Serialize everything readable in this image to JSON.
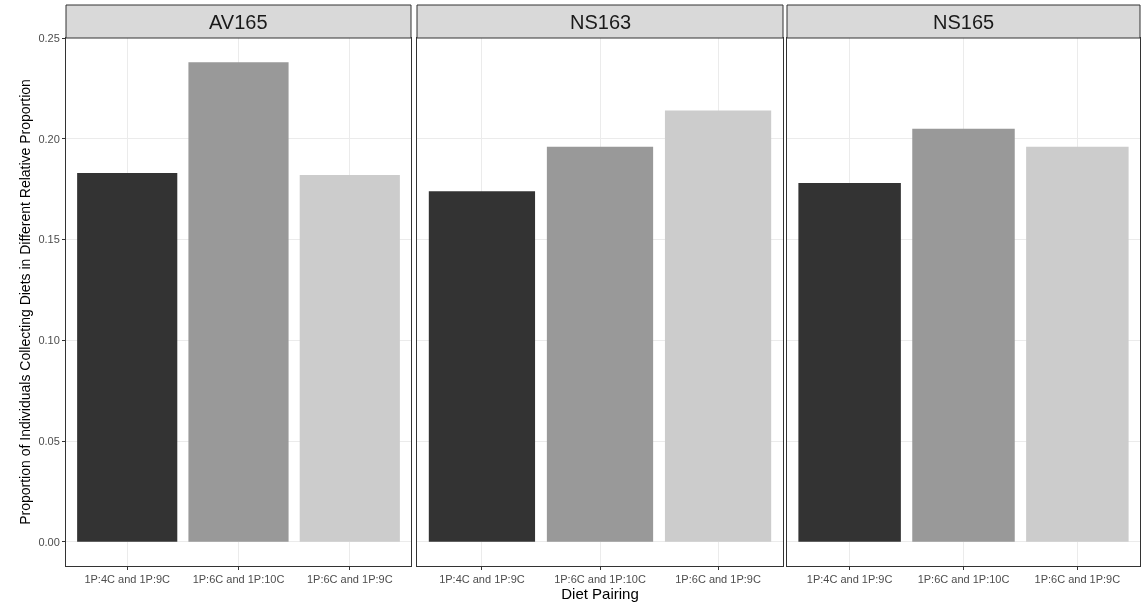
{
  "chart_data": [
    {
      "type": "bar",
      "title": "AV165",
      "ylabel": "Proportion of Individuals Collecting Diets in Different Relative Proportion",
      "categories": [
        "1P:4C and 1P:9C",
        "1P:6C and 1P:10C",
        "1P:6C and 1P:9C"
      ],
      "values": [
        0.183,
        0.238,
        0.182
      ],
      "colors": [
        "#333333",
        "#999999",
        "#cccccc"
      ],
      "ylim": [
        -0.012,
        0.25
      ],
      "yticks": [
        {
          "value": 0,
          "label": "0.00"
        },
        0.05,
        {
          "value": 0.1,
          "label": "0.10"
        },
        0.15,
        {
          "value": 0.2,
          "label": "0.20"
        },
        0.25
      ],
      "grid": true
    },
    {
      "type": "bar",
      "title": "NS163",
      "xlabel": "Diet Pairing",
      "categories": [
        "1P:4C and 1P:9C",
        "1P:6C and 1P:10C",
        "1P:6C and 1P:9C"
      ],
      "values": [
        0.174,
        0.196,
        0.214
      ],
      "colors": [
        "#333333",
        "#999999",
        "#cccccc"
      ],
      "ylim": [
        -0.012,
        0.25
      ],
      "yticks": [
        0,
        0.05,
        0.1,
        0.15,
        0.2,
        0.25
      ],
      "grid": true,
      "tick_labels": "x"
    },
    {
      "type": "bar",
      "title": "NS165",
      "categories": [
        "1P:4C and 1P:9C",
        "1P:6C and 1P:10C",
        "1P:6C and 1P:9C"
      ],
      "values": [
        0.178,
        0.205,
        0.196
      ],
      "colors": [
        "#333333",
        "#999999",
        "#cccccc"
      ],
      "ylim": [
        -0.012,
        0.25
      ],
      "yticks": [
        0,
        0.05,
        0.1,
        0.15,
        0.2,
        0.25
      ],
      "grid": true,
      "tick_labels": "x"
    }
  ]
}
